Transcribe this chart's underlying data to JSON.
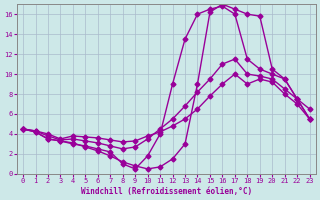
{
  "xlabel": "Windchill (Refroidissement éolien,°C)",
  "xlim": [
    -0.5,
    23.5
  ],
  "ylim": [
    0,
    17
  ],
  "xticks": [
    0,
    1,
    2,
    3,
    4,
    5,
    6,
    7,
    8,
    9,
    10,
    11,
    12,
    13,
    14,
    15,
    16,
    17,
    18,
    19,
    20,
    21,
    22,
    23
  ],
  "yticks": [
    0,
    2,
    4,
    6,
    8,
    10,
    12,
    14,
    16
  ],
  "bg_color": "#cde8e8",
  "grid_color": "#aabbcc",
  "line_color": "#990099",
  "line_width": 1.0,
  "marker": "D",
  "marker_size": 2.5,
  "lines": [
    {
      "x": [
        0,
        1,
        2,
        3,
        4,
        5,
        6,
        7,
        8,
        9,
        10,
        11,
        12,
        13,
        14,
        15,
        16,
        17,
        18,
        19,
        20,
        21,
        22,
        23
      ],
      "y": [
        4.5,
        4.3,
        4.0,
        3.5,
        3.8,
        3.7,
        3.6,
        3.4,
        3.2,
        3.3,
        3.8,
        4.2,
        4.8,
        5.5,
        6.5,
        7.8,
        9.0,
        10.0,
        9.0,
        9.5,
        9.2,
        8.0,
        7.0,
        5.5
      ]
    },
    {
      "x": [
        0,
        1,
        2,
        3,
        4,
        5,
        6,
        7,
        8,
        9,
        10,
        11,
        12,
        13,
        14,
        15,
        16,
        17,
        18,
        19,
        20,
        21,
        22,
        23
      ],
      "y": [
        4.5,
        4.3,
        3.8,
        3.4,
        3.5,
        3.3,
        3.1,
        2.8,
        2.5,
        2.7,
        3.5,
        4.5,
        5.5,
        6.8,
        8.2,
        9.5,
        11.0,
        11.5,
        10.0,
        9.8,
        9.5,
        8.5,
        7.5,
        5.5
      ]
    },
    {
      "x": [
        0,
        1,
        2,
        3,
        4,
        5,
        6,
        7,
        8,
        9,
        10,
        11,
        12,
        13,
        14,
        15,
        16,
        17,
        18,
        19,
        20,
        21,
        22,
        23
      ],
      "y": [
        4.5,
        4.2,
        3.5,
        3.3,
        3.1,
        2.7,
        2.3,
        1.8,
        1.2,
        0.8,
        0.5,
        0.7,
        1.5,
        3.0,
        9.0,
        16.2,
        17.0,
        16.5,
        16.0,
        15.8,
        10.5,
        9.5,
        7.5,
        6.5
      ]
    },
    {
      "x": [
        0,
        1,
        2,
        3,
        4,
        5,
        6,
        7,
        8,
        9,
        10,
        11,
        12,
        13,
        14,
        15,
        16,
        17,
        18,
        19,
        20,
        21,
        22,
        23
      ],
      "y": [
        4.5,
        4.2,
        3.5,
        3.3,
        3.0,
        2.8,
        2.5,
        2.2,
        1.0,
        0.5,
        1.8,
        4.0,
        9.0,
        13.5,
        16.0,
        16.5,
        16.8,
        16.0,
        11.5,
        10.5,
        10.0,
        9.5,
        7.5,
        5.5
      ]
    }
  ]
}
